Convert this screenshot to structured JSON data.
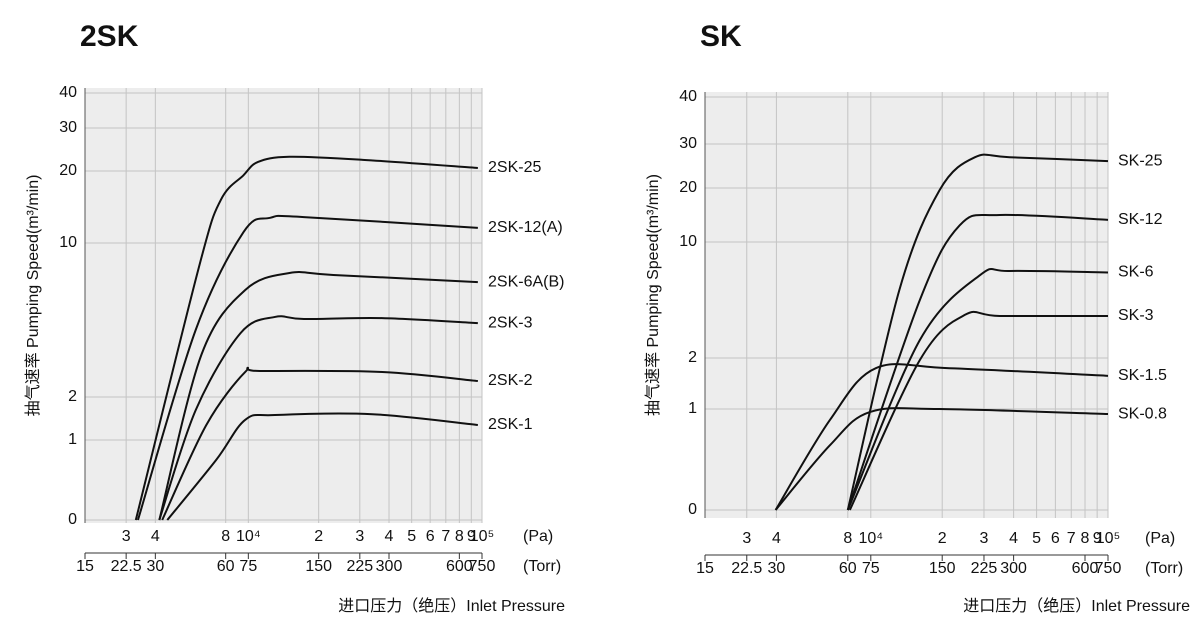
{
  "chart_data": [
    {
      "type": "line",
      "title": "2SK",
      "y_label": "抽气速率  Pumping Speed(m³/min)",
      "x_label": "进口压力（绝压）Inlet Pressure",
      "x_unit": "(Pa)",
      "x2_unit": "(Torr)",
      "log_x": true,
      "grid": true,
      "xlim": [
        2000,
        100000
      ],
      "xticks": [
        {
          "value": 3000,
          "label": "3"
        },
        {
          "value": 4000,
          "label": "4"
        },
        {
          "value": 8000,
          "label": "8"
        },
        {
          "value": 10000,
          "label": "10⁴"
        },
        {
          "value": 20000,
          "label": "2"
        },
        {
          "value": 30000,
          "label": "3"
        },
        {
          "value": 40000,
          "label": "4"
        },
        {
          "value": 50000,
          "label": "5"
        },
        {
          "value": 60000,
          "label": "6"
        },
        {
          "value": 70000,
          "label": "7"
        },
        {
          "value": 80000,
          "label": "8"
        },
        {
          "value": 90000,
          "label": "9"
        },
        {
          "value": 100000,
          "label": "10⁵"
        }
      ],
      "x2lim": [
        15,
        750
      ],
      "x2ticks": [
        15,
        22.5,
        30,
        60,
        75,
        150,
        225,
        300,
        600,
        750
      ],
      "ylim": [
        0,
        40
      ],
      "yticks": [
        0,
        1,
        2,
        10,
        20,
        30,
        40
      ],
      "series": [
        {
          "name": "2SK-25",
          "color": "#111111",
          "x": [
            3300,
            6180,
            7630,
            9530,
            11000,
            14980,
            30900,
            96000
          ],
          "values": [
            0,
            8.86,
            16,
            19.4,
            22.1,
            23.3,
            22.6,
            20.7
          ]
        },
        {
          "name": "2SK-12(A)",
          "color": "#111111",
          "x": [
            3370,
            5960,
            9530,
            12400,
            17300,
            96000
          ],
          "values": [
            0,
            5.5,
            11.5,
            13.5,
            13.6,
            12.1
          ]
        },
        {
          "name": "2SK-6A(B)",
          "color": "#111111",
          "x": [
            4160,
            6300,
            9700,
            15000,
            23100,
            96000
          ],
          "values": [
            0,
            4.2,
            7.56,
            8.44,
            8.34,
            7.97
          ]
        },
        {
          "name": "2SK-3",
          "color": "#111111",
          "x": [
            4160,
            5960,
            9260,
            13000,
            17300,
            37400,
            96000
          ],
          "values": [
            0,
            1.7,
            5.32,
            6.16,
            6.05,
            6.1,
            5.84
          ]
        },
        {
          "name": "2SK-2",
          "color": "#111111",
          "x": [
            4280,
            6610,
            9700,
            11200,
            37400,
            96000
          ],
          "values": [
            0,
            1.35,
            3.3,
            3.35,
            3.3,
            2.83
          ]
        },
        {
          "name": "2SK-1",
          "color": "#111111",
          "x": [
            4500,
            7280,
            9700,
            13000,
            34000,
            96000
          ],
          "values": [
            0,
            0.75,
            1.47,
            1.58,
            1.6,
            1.35
          ]
        }
      ]
    },
    {
      "type": "line",
      "title": "SK",
      "y_label": "抽气速率  Pumping Speed(m³/min)",
      "x_label": "进口压力（绝压）Inlet Pressure",
      "x_unit": "(Pa)",
      "x2_unit": "(Torr)",
      "log_x": true,
      "grid": true,
      "xlim": [
        2000,
        100000
      ],
      "xticks": [
        {
          "value": 3000,
          "label": "3"
        },
        {
          "value": 4000,
          "label": "4"
        },
        {
          "value": 8000,
          "label": "8"
        },
        {
          "value": 10000,
          "label": "10⁴"
        },
        {
          "value": 20000,
          "label": "2"
        },
        {
          "value": 30000,
          "label": "3"
        },
        {
          "value": 40000,
          "label": "4"
        },
        {
          "value": 50000,
          "label": "5"
        },
        {
          "value": 60000,
          "label": "6"
        },
        {
          "value": 70000,
          "label": "7"
        },
        {
          "value": 80000,
          "label": "8"
        },
        {
          "value": 90000,
          "label": "9"
        },
        {
          "value": 100000,
          "label": "10⁵"
        }
      ],
      "x2lim": [
        15,
        750
      ],
      "x2ticks": [
        15,
        22.5,
        30,
        60,
        75,
        150,
        225,
        300,
        600,
        750
      ],
      "ylim": [
        0,
        40
      ],
      "yticks": [
        0,
        1,
        2,
        10,
        20,
        30,
        40
      ],
      "series": [
        {
          "name": "SK-25",
          "color": "#111111",
          "x": [
            8000,
            13200,
            19500,
            27500,
            38500,
            100000
          ],
          "values": [
            0,
            6.7,
            19.6,
            27,
            27,
            26.1
          ]
        },
        {
          "name": "SK-12",
          "color": "#111111",
          "x": [
            8000,
            16100,
            23700,
            35000,
            100000
          ],
          "values": [
            0,
            6,
            13.1,
            15,
            14.1
          ]
        },
        {
          "name": "SK-6",
          "color": "#111111",
          "x": [
            8000,
            16100,
            28800,
            38500,
            100000
          ],
          "values": [
            0,
            3.24,
            7.7,
            8,
            7.9
          ]
        },
        {
          "name": "SK-3",
          "color": "#111111",
          "x": [
            8160,
            16100,
            24900,
            35000,
            100000
          ],
          "values": [
            0,
            1.96,
            4.97,
            4.9,
            4.9
          ]
        },
        {
          "name": "SK-1.5",
          "color": "#111111",
          "x": [
            3970,
            6720,
            10500,
            21500,
            100000
          ],
          "values": [
            0,
            0.89,
            1.8,
            1.8,
            1.65
          ]
        },
        {
          "name": "SK-0.8",
          "color": "#111111",
          "x": [
            3970,
            6720,
            9900,
            19500,
            100000
          ],
          "values": [
            0,
            0.64,
            0.97,
            1,
            0.95
          ]
        }
      ]
    }
  ]
}
